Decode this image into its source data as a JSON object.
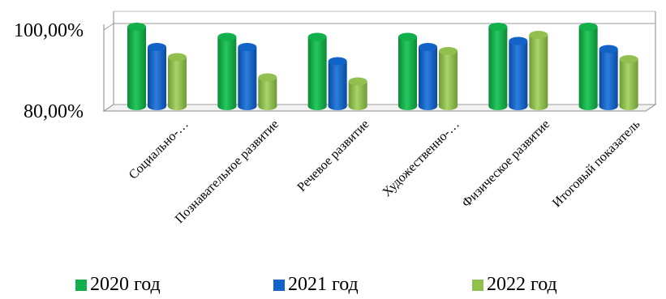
{
  "chart_data": {
    "type": "bar",
    "categories": [
      "Социально-…",
      "Познавательное развитие",
      "Речевое развитие",
      "Художественно-…",
      "Физическое развитие",
      "Итоговый показатель"
    ],
    "series": [
      {
        "name": "2020 год",
        "color": "#12b04a",
        "values": [
          100.0,
          97.5,
          97.5,
          97.5,
          100.0,
          100.0
        ]
      },
      {
        "name": "2021 год",
        "color": "#1263c8",
        "values": [
          95.0,
          95.0,
          91.5,
          95.0,
          96.5,
          94.5
        ]
      },
      {
        "name": "2022 год",
        "color": "#92c050",
        "values": [
          92.5,
          87.5,
          86.5,
          94.0,
          98.0,
          92.0
        ]
      }
    ],
    "y_ticks": [
      "80,00%",
      "100,00%"
    ],
    "ylim": [
      80,
      100
    ],
    "title": "",
    "xlabel": "",
    "ylabel": "",
    "legend_position": "bottom",
    "grid": true
  }
}
